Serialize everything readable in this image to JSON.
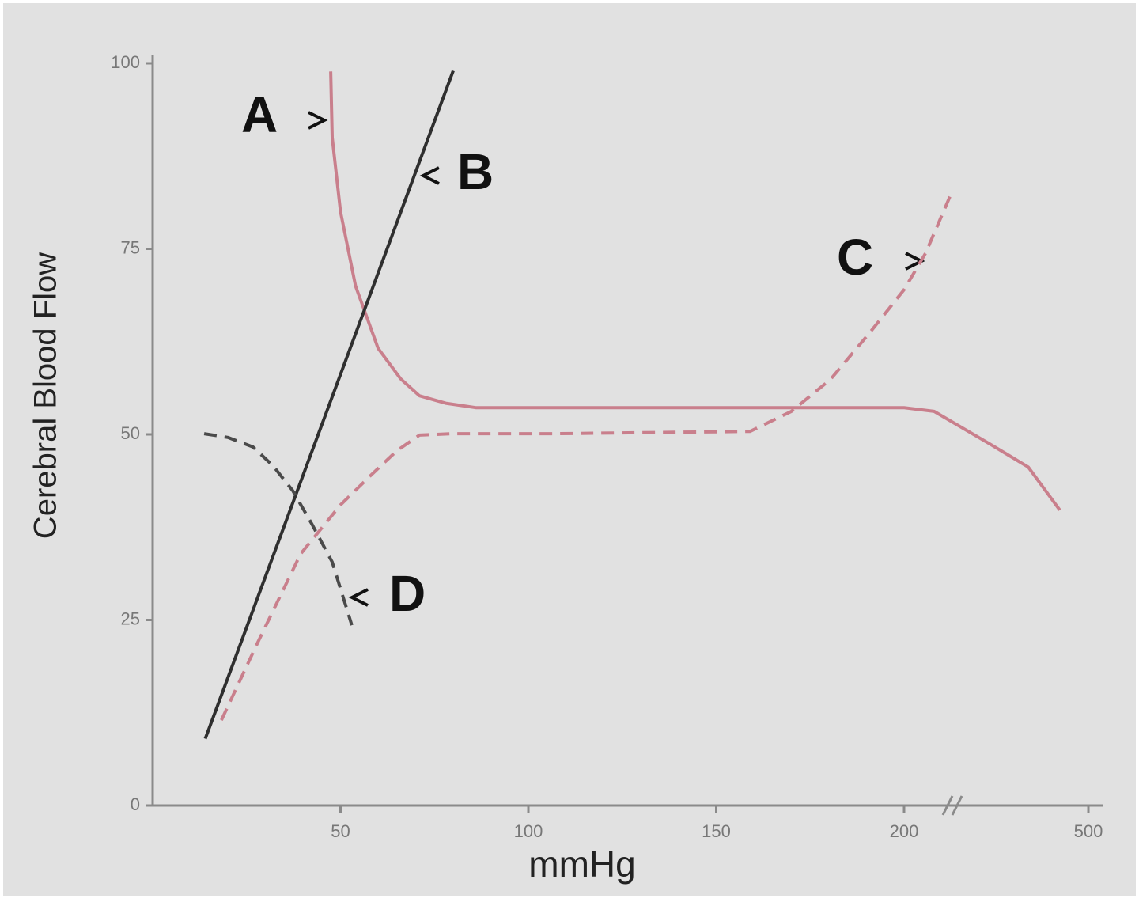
{
  "chart_data": {
    "type": "line",
    "x_label": "mmHg",
    "y_label": "Cerebral Blood Flow",
    "xlim": [
      0,
      504
    ],
    "xbreak": [
      213,
      464
    ],
    "xticks": [
      50,
      100,
      150,
      200,
      500
    ],
    "ylim": [
      0,
      100
    ],
    "yticks": [
      0,
      25,
      50,
      75,
      100
    ],
    "series": [
      {
        "name": "A",
        "color": "#c97f8c",
        "dashed": false,
        "x": [
          47.4,
          47.8,
          50,
          54,
          60,
          66,
          71,
          78,
          86,
          128,
          170,
          200,
          208,
          473.5,
          484,
          492.4
        ],
        "values": [
          98.9,
          90,
          80,
          70,
          61.6,
          57.5,
          55.2,
          54.2,
          53.6,
          53.6,
          53.6,
          53.6,
          53.1,
          48.8,
          45.6,
          39.8
        ]
      },
      {
        "name": "B",
        "color": "#2f2f2f",
        "dashed": false,
        "x": [
          14,
          80
        ],
        "values": [
          9,
          99
        ]
      },
      {
        "name": "C",
        "color": "#c97f8c",
        "dashed": true,
        "x": [
          18.3,
          28,
          39.4,
          50,
          58.3,
          65,
          71,
          80,
          106.7,
          159,
          170,
          180.4,
          191,
          200,
          205.7,
          213
        ],
        "values": [
          11.5,
          22,
          33.9,
          40.5,
          44.6,
          47.8,
          49.9,
          50.1,
          50.1,
          50.4,
          53.1,
          57.4,
          63.8,
          69.5,
          74.4,
          83
        ]
      },
      {
        "name": "D",
        "color": "#4a4a4a",
        "dashed": true,
        "x": [
          13.7,
          20,
          26.7,
          32,
          37.3,
          42.5,
          47.8,
          53
        ],
        "values": [
          50.1,
          49.6,
          48.3,
          45.8,
          42.4,
          37.8,
          32.8,
          24.3
        ]
      }
    ]
  }
}
